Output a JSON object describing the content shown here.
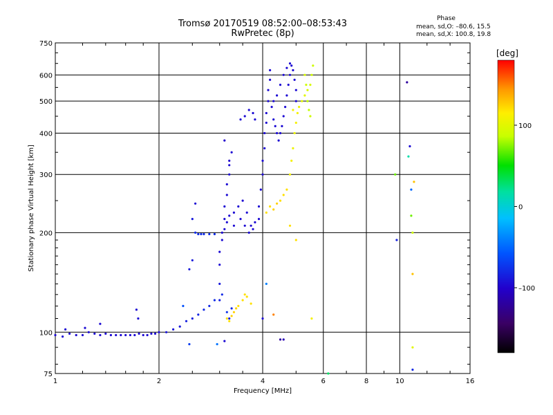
{
  "title": {
    "line1": "Tromsø 20170519 08:52:00–08:53:43",
    "line2": "RwPretec (8p)"
  },
  "phase_panel": {
    "title": "Phase",
    "o_line": "mean, sd,O: –80.6, 15.5",
    "x_line": "mean, sd,X: 100.8, 19.8"
  },
  "colorbar": {
    "label": "[deg]",
    "ticks": [
      "100",
      "0",
      "–100"
    ],
    "tick_values": [
      100,
      0,
      -100
    ],
    "range": [
      -180,
      180
    ],
    "colormap": "rainbow (black-violet-blue-cyan-green-yellow-orange-red)"
  },
  "chart_data": {
    "type": "scatter",
    "xlabel": "Frequency [MHz]",
    "ylabel": "Stationary phase Virtual Height [km]",
    "xscale": "log",
    "yscale": "log",
    "xlim": [
      1,
      16
    ],
    "ylim": [
      75,
      750
    ],
    "xticks": [
      1,
      2,
      4,
      6,
      8,
      10,
      16
    ],
    "xtick_labels": [
      "1",
      "2",
      "4",
      "6",
      "8",
      "10",
      "16"
    ],
    "yticks": [
      75,
      100,
      200,
      300,
      400,
      500,
      600,
      750
    ],
    "ytick_labels": [
      "75",
      "100",
      "200",
      "300",
      "400",
      "500",
      "600",
      "750"
    ],
    "grid": true,
    "series": [
      {
        "color_by": "phase",
        "points": [
          [
            1.0,
            98,
            -95
          ],
          [
            1.05,
            97,
            -95
          ],
          [
            1.1,
            99,
            -95
          ],
          [
            1.15,
            98,
            -95
          ],
          [
            1.2,
            98,
            -95
          ],
          [
            1.25,
            100,
            -95
          ],
          [
            1.3,
            99,
            -95
          ],
          [
            1.35,
            98,
            -95
          ],
          [
            1.4,
            99,
            -95
          ],
          [
            1.45,
            98,
            -95
          ],
          [
            1.5,
            98,
            -95
          ],
          [
            1.55,
            98,
            -95
          ],
          [
            1.6,
            98,
            -95
          ],
          [
            1.65,
            98,
            -95
          ],
          [
            1.7,
            98,
            -95
          ],
          [
            1.75,
            99,
            -95
          ],
          [
            1.8,
            98,
            -95
          ],
          [
            1.85,
            98,
            -95
          ],
          [
            1.9,
            99,
            -95
          ],
          [
            1.95,
            99,
            -95
          ],
          [
            2.0,
            100,
            -95
          ],
          [
            2.1,
            100,
            -90
          ],
          [
            2.2,
            102,
            -90
          ],
          [
            2.3,
            104,
            -88
          ],
          [
            2.4,
            108,
            -85
          ],
          [
            2.5,
            110,
            -85
          ],
          [
            2.6,
            113,
            -82
          ],
          [
            2.7,
            117,
            -80
          ],
          [
            2.8,
            120,
            -80
          ],
          [
            2.9,
            125,
            -78
          ],
          [
            1.07,
            102,
            -95
          ],
          [
            1.22,
            103,
            -95
          ],
          [
            1.35,
            106,
            -95
          ],
          [
            1.72,
            117,
            -95
          ],
          [
            1.74,
            110,
            -95
          ],
          [
            2.45,
            155,
            -88
          ],
          [
            2.5,
            165,
            -88
          ],
          [
            2.55,
            200,
            -78
          ],
          [
            2.6,
            198,
            -78
          ],
          [
            2.65,
            198,
            -78
          ],
          [
            2.7,
            198,
            -78
          ],
          [
            2.8,
            198,
            -78
          ],
          [
            2.9,
            198,
            -78
          ],
          [
            2.55,
            245,
            -95
          ],
          [
            2.5,
            220,
            -88
          ],
          [
            2.35,
            120,
            -60
          ],
          [
            2.45,
            92,
            -70
          ],
          [
            2.95,
            92,
            -45
          ],
          [
            3.1,
            94,
            -95
          ],
          [
            3.0,
            125,
            -85
          ],
          [
            3.0,
            140,
            -88
          ],
          [
            3.0,
            160,
            -95
          ],
          [
            3.0,
            175,
            -95
          ],
          [
            3.05,
            190,
            -95
          ],
          [
            3.05,
            200,
            -95
          ],
          [
            3.1,
            220,
            -95
          ],
          [
            3.1,
            240,
            -95
          ],
          [
            3.15,
            260,
            -95
          ],
          [
            3.15,
            280,
            -95
          ],
          [
            3.2,
            300,
            -95
          ],
          [
            3.2,
            320,
            -95
          ],
          [
            3.25,
            350,
            -95
          ],
          [
            3.1,
            380,
            -100
          ],
          [
            3.2,
            330,
            -100
          ],
          [
            3.3,
            230,
            -95
          ],
          [
            3.4,
            240,
            -95
          ],
          [
            3.5,
            250,
            -95
          ],
          [
            3.6,
            230,
            -95
          ],
          [
            3.7,
            210,
            -95
          ],
          [
            3.8,
            215,
            -95
          ],
          [
            3.9,
            220,
            -95
          ],
          [
            3.1,
            205,
            -95
          ],
          [
            3.15,
            215,
            -95
          ],
          [
            3.2,
            225,
            -95
          ],
          [
            3.3,
            210,
            -95
          ],
          [
            3.45,
            220,
            -95
          ],
          [
            3.55,
            210,
            -95
          ],
          [
            3.65,
            200,
            -95
          ],
          [
            3.75,
            205,
            -95
          ],
          [
            3.05,
            130,
            -80
          ],
          [
            3.15,
            115,
            -75
          ],
          [
            3.2,
            110,
            -85
          ],
          [
            3.25,
            118,
            -80
          ],
          [
            3.15,
            110,
            120
          ],
          [
            3.2,
            108,
            120
          ],
          [
            3.25,
            112,
            125
          ],
          [
            3.3,
            115,
            125
          ],
          [
            3.35,
            118,
            125
          ],
          [
            3.4,
            120,
            120
          ],
          [
            3.5,
            125,
            120
          ],
          [
            3.55,
            130,
            120
          ],
          [
            3.6,
            128,
            120
          ],
          [
            3.7,
            122,
            120
          ],
          [
            3.45,
            440,
            -95
          ],
          [
            3.55,
            450,
            -95
          ],
          [
            3.65,
            470,
            -95
          ],
          [
            3.75,
            460,
            -95
          ],
          [
            3.8,
            440,
            -95
          ],
          [
            3.9,
            240,
            -95
          ],
          [
            3.95,
            270,
            -95
          ],
          [
            4.0,
            300,
            -95
          ],
          [
            4.0,
            330,
            -95
          ],
          [
            4.05,
            360,
            -95
          ],
          [
            4.05,
            400,
            -95
          ],
          [
            4.1,
            430,
            -95
          ],
          [
            4.1,
            460,
            -95
          ],
          [
            4.15,
            500,
            -95
          ],
          [
            4.15,
            540,
            -95
          ],
          [
            4.2,
            580,
            -95
          ],
          [
            4.2,
            620,
            -95
          ],
          [
            4.25,
            480,
            -95
          ],
          [
            4.3,
            440,
            -95
          ],
          [
            4.35,
            420,
            -95
          ],
          [
            4.4,
            400,
            -95
          ],
          [
            4.45,
            380,
            -95
          ],
          [
            4.5,
            400,
            -95
          ],
          [
            4.55,
            420,
            -95
          ],
          [
            4.6,
            450,
            -95
          ],
          [
            4.65,
            480,
            -95
          ],
          [
            4.7,
            520,
            -95
          ],
          [
            4.75,
            560,
            -95
          ],
          [
            4.8,
            600,
            -95
          ],
          [
            4.85,
            640,
            -95
          ],
          [
            4.9,
            620,
            -95
          ],
          [
            4.95,
            580,
            -95
          ],
          [
            5.0,
            540,
            -95
          ],
          [
            5.0,
            500,
            -95
          ],
          [
            4.3,
            500,
            -95
          ],
          [
            4.4,
            520,
            -95
          ],
          [
            4.5,
            560,
            -95
          ],
          [
            4.6,
            600,
            -95
          ],
          [
            4.7,
            630,
            -95
          ],
          [
            4.8,
            650,
            -95
          ],
          [
            4.1,
            230,
            120
          ],
          [
            4.2,
            240,
            120
          ],
          [
            4.3,
            235,
            125
          ],
          [
            4.4,
            245,
            125
          ],
          [
            4.5,
            250,
            120
          ],
          [
            4.6,
            260,
            120
          ],
          [
            4.7,
            270,
            120
          ],
          [
            4.8,
            300,
            110
          ],
          [
            4.85,
            330,
            110
          ],
          [
            4.9,
            360,
            105
          ],
          [
            4.95,
            400,
            105
          ],
          [
            5.0,
            430,
            110
          ],
          [
            5.05,
            460,
            110
          ],
          [
            5.1,
            480,
            105
          ],
          [
            5.2,
            500,
            100
          ],
          [
            5.3,
            520,
            100
          ],
          [
            5.4,
            540,
            95
          ],
          [
            5.5,
            560,
            95
          ],
          [
            5.55,
            600,
            90
          ],
          [
            5.6,
            640,
            90
          ],
          [
            5.5,
            450,
            90
          ],
          [
            5.45,
            470,
            85
          ],
          [
            5.4,
            500,
            85
          ],
          [
            5.35,
            560,
            90
          ],
          [
            5.3,
            600,
            95
          ],
          [
            4.9,
            470,
            110
          ],
          [
            5.55,
            110,
            110
          ],
          [
            4.3,
            113,
            150
          ],
          [
            4.5,
            95,
            -120
          ],
          [
            4.6,
            95,
            -110
          ],
          [
            5.0,
            190,
            120
          ],
          [
            4.8,
            210,
            120
          ],
          [
            4.1,
            140,
            -40
          ],
          [
            4.0,
            110,
            -95
          ],
          [
            9.7,
            300,
            70
          ],
          [
            9.8,
            190,
            -85
          ],
          [
            10.5,
            570,
            -120
          ],
          [
            10.6,
            340,
            15
          ],
          [
            10.7,
            365,
            -95
          ],
          [
            10.8,
            270,
            -50
          ],
          [
            10.8,
            225,
            70
          ],
          [
            10.9,
            200,
            90
          ],
          [
            10.9,
            150,
            130
          ],
          [
            10.9,
            90,
            100
          ],
          [
            10.9,
            77,
            -80
          ],
          [
            11.0,
            285,
            130
          ],
          [
            6.2,
            75,
            30
          ]
        ]
      }
    ]
  }
}
